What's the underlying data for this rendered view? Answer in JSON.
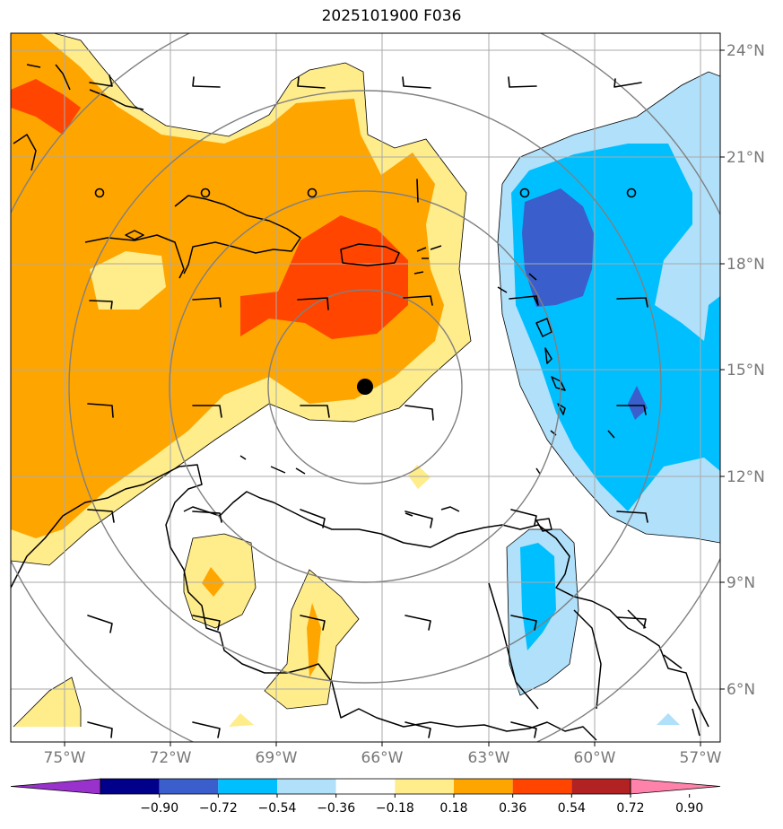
{
  "title": "2025101900 F036",
  "lat_labels": [
    "24°N",
    "21°N",
    "18°N",
    "15°N",
    "12°N",
    "9°N",
    "6°N"
  ],
  "lon_labels": [
    "75°W",
    "72°W",
    "69°W",
    "66°W",
    "63°W",
    "60°W",
    "57°W"
  ],
  "colorbar": {
    "ticks": [
      "−0.90",
      "−0.72",
      "−0.54",
      "−0.36",
      "−0.18",
      "0.18",
      "0.36",
      "0.54",
      "0.72",
      "0.90"
    ],
    "colors": [
      "#9932cc",
      "#00008b",
      "#3a5fcd",
      "#00bfff",
      "#b0e0fa",
      "#ffffff",
      "#ffec8b",
      "#ffa500",
      "#ff4500",
      "#b22222",
      "#ff82ab"
    ]
  },
  "storm_center": {
    "lon": -66.7,
    "lat": 14.5
  },
  "fill_colors": {
    "yellow": "#ffec8b",
    "orange": "#ffa500",
    "red": "#ff4500",
    "lightblue": "#b0e0fa",
    "blue": "#00bfff",
    "darkblue": "#3a5fcd"
  }
}
